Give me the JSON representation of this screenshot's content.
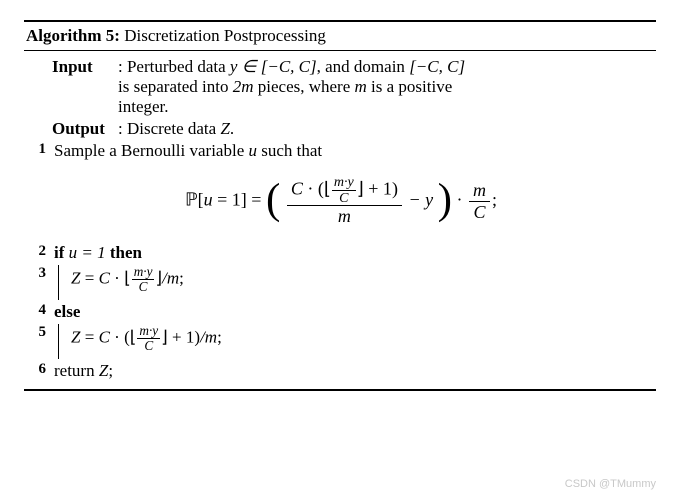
{
  "title_prefix": "Algorithm 5:",
  "title_text": " Discretization Postprocessing",
  "input_label": "Input",
  "input_text_l1": ": Perturbed data ",
  "input_math1": "y ∈ [−C, C]",
  "input_text_l1b": ", and domain ",
  "input_math2": "[−C, C]",
  "input_text_l2a": "is separated into ",
  "input_math3": "2m",
  "input_text_l2b": " pieces, where ",
  "input_math4": "m",
  "input_text_l2c": " is a positive",
  "input_text_l3": "integer.",
  "output_label": "Output",
  "output_text": ": Discrete data ",
  "output_math": "Z",
  "output_period": ".",
  "line1_no": "1",
  "line1_text": "Sample a Bernoulli variable ",
  "line1_u": "u",
  "line1_text2": " such that",
  "eq_P": "ℙ",
  "eq_bracket_l": "[",
  "eq_u": "u",
  "eq_eq1": " = 1",
  "eq_bracket_r": "] = ",
  "eq_C": "C",
  "eq_dot": " · ",
  "eq_floor_l": "⌊",
  "eq_my": "m·y",
  "eq_floor_r": "⌋",
  "eq_plus1": " + 1",
  "eq_m": "m",
  "eq_minus_y": " − y",
  "eq_semicolon": ";",
  "line2_no": "2",
  "line2_if": "if ",
  "line2_cond": "u = 1",
  "line2_then": " then",
  "line3_no": "3",
  "line3_Z": "Z",
  "line3_eq": " = ",
  "line3_C": "C",
  "line3_slash_m": "/m",
  "line3_semi": ";",
  "line4_no": "4",
  "line4_else": "else",
  "line5_no": "5",
  "line5_Z": "Z",
  "line5_text": " = ",
  "line5_C": "C",
  "line5_paren_l": "(",
  "line5_paren_r": ")",
  "line5_slash_m": "/m",
  "line5_semi": ";",
  "line6_no": "6",
  "line6_text": "return ",
  "line6_Z": "Z",
  "line6_semi": ";",
  "watermark": "CSDN @TMummy",
  "colors": {
    "text": "#000000",
    "bg": "#ffffff",
    "rule": "#000000",
    "watermark": "#c8c8c8"
  },
  "fontsize_body_pt": 12,
  "fontsize_eq_pt": 13
}
